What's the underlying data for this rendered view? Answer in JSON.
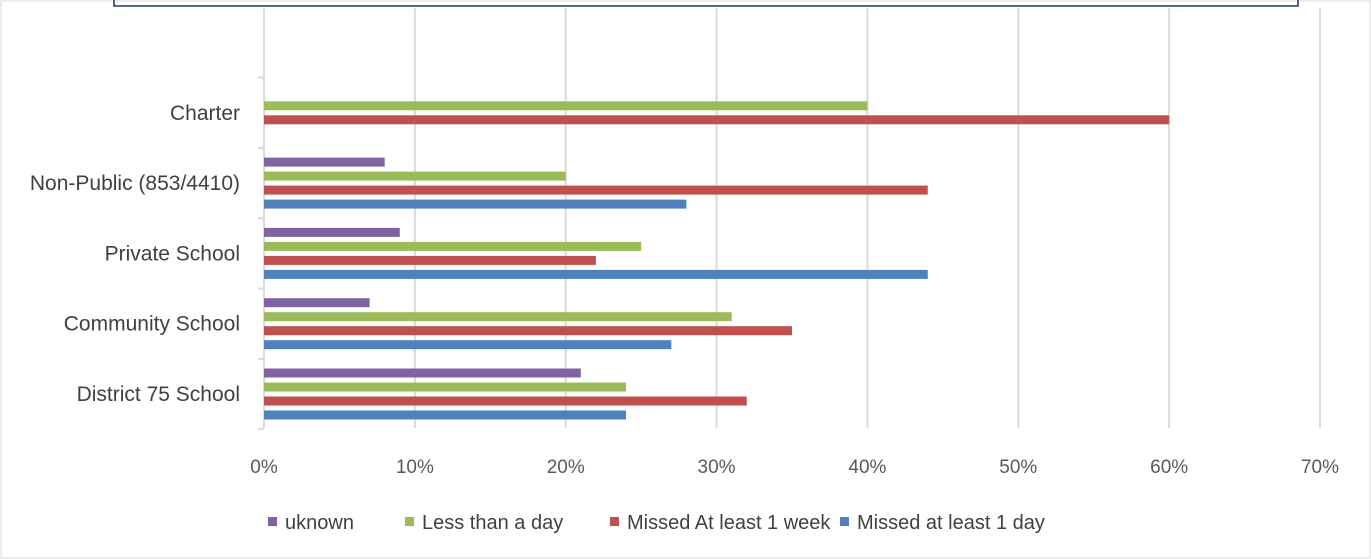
{
  "chart_data": {
    "type": "bar",
    "orientation": "horizontal",
    "categories": [
      "District 75 School",
      "Community School",
      "Private School",
      "Non-Public (853/4410)",
      "Charter"
    ],
    "series": [
      {
        "name": "uknown",
        "color": "#8064a2",
        "values": [
          21,
          7,
          9,
          8,
          null
        ]
      },
      {
        "name": "Less than a day",
        "color": "#9bbb59",
        "values": [
          24,
          31,
          25,
          20,
          40
        ]
      },
      {
        "name": "Missed At least  1 week",
        "color": "#c0504d",
        "values": [
          32,
          35,
          22,
          44,
          60
        ]
      },
      {
        "name": "Missed at least 1 day",
        "color": "#4f81bd",
        "values": [
          24,
          27,
          44,
          28,
          null
        ]
      }
    ],
    "xlim": [
      0,
      70
    ],
    "xticks": [
      0,
      10,
      20,
      30,
      40,
      50,
      60,
      70
    ],
    "tick_format": "percent",
    "grid": true,
    "legend": "bottom",
    "title": "",
    "xlabel": "",
    "ylabel": ""
  }
}
